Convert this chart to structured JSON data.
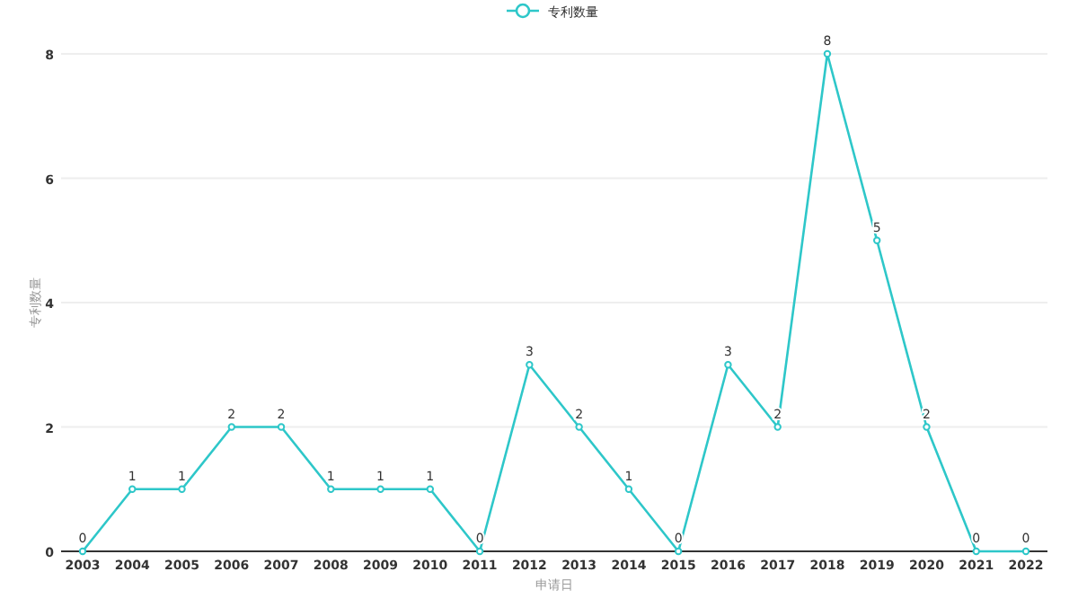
{
  "chart_data": {
    "type": "line",
    "xlabel": "申请日",
    "ylabel": "专利数量",
    "categories": [
      "2003",
      "2004",
      "2005",
      "2006",
      "2007",
      "2008",
      "2009",
      "2010",
      "2011",
      "2012",
      "2013",
      "2014",
      "2015",
      "2016",
      "2017",
      "2018",
      "2019",
      "2020",
      "2021",
      "2022"
    ],
    "series": [
      {
        "name": "专利数量",
        "color": "#2ec7c9",
        "values": [
          0,
          1,
          1,
          2,
          2,
          1,
          1,
          1,
          0,
          3,
          2,
          1,
          0,
          3,
          2,
          8,
          5,
          2,
          0,
          0
        ]
      }
    ],
    "ylim": [
      0,
      8
    ],
    "yticks": [
      0,
      2,
      4,
      6,
      8
    ],
    "grid": "y",
    "legend": "top",
    "marker": "circle",
    "data_labels": true
  }
}
